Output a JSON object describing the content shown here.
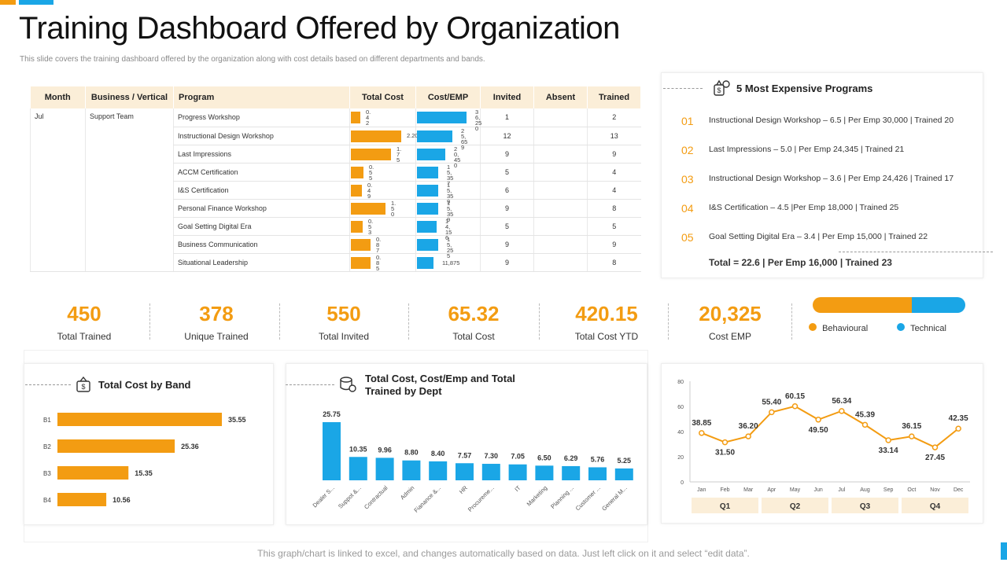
{
  "page": {
    "title": "Training Dashboard Offered by Organization",
    "subtitle": "This slide covers the training dashboard offered by the organization along with cost details based on different departments and bands.",
    "footer": "This graph/chart is linked to excel,  and changes automatically based on data. Just left click on it and select “edit data”."
  },
  "table": {
    "headers": [
      "Month",
      "Business / Vertical",
      "Program",
      "Total Cost",
      "Cost/EMP",
      "Invited",
      "Absent",
      "Trained"
    ],
    "month": "Jul",
    "vertical": "Support Team",
    "rows": [
      {
        "program": "Progress Workshop",
        "cost": 0.42,
        "cost_label": "0. 4 2",
        "emp": 36250,
        "emp_label": "36, 25 0",
        "invited": "1",
        "absent": "",
        "trained": "2"
      },
      {
        "program": "Instructional Design Workshop",
        "cost": 2.2,
        "cost_label": "2.20",
        "emp": 25659,
        "emp_label": "25, 65 9",
        "invited": "12",
        "absent": "",
        "trained": "13"
      },
      {
        "program": "Last Impressions",
        "cost": 1.75,
        "cost_label": "1. 7 5",
        "emp": 20450,
        "emp_label": "20, 45 0",
        "invited": "9",
        "absent": "",
        "trained": "9"
      },
      {
        "program": "ACCM Certification",
        "cost": 0.55,
        "cost_label": "0. 5 5",
        "emp": 15357,
        "emp_label": "15, 35 7",
        "invited": "5",
        "absent": "",
        "trained": "4"
      },
      {
        "program": "I&S Certification",
        "cost": 0.49,
        "cost_label": "0. 4 9",
        "emp": 15359,
        "emp_label": "15, 35 9",
        "invited": "6",
        "absent": "",
        "trained": "4"
      },
      {
        "program": "Personal Finance Workshop",
        "cost": 1.5,
        "cost_label": "1. 5 0",
        "emp": 15359,
        "emp_label": "15, 35 9",
        "invited": "9",
        "absent": "",
        "trained": "8"
      },
      {
        "program": "Goal Setting Digital Era",
        "cost": 0.53,
        "cost_label": "0. 5 3",
        "emp": 14156,
        "emp_label": "14, 15 6",
        "invited": "5",
        "absent": "",
        "trained": "5"
      },
      {
        "program": "Business Communication",
        "cost": 0.87,
        "cost_label": "0. 8 7",
        "emp": 15255,
        "emp_label": "15, 25 5",
        "invited": "9",
        "absent": "",
        "trained": "9"
      },
      {
        "program": "Situational Leadership",
        "cost": 0.85,
        "cost_label": "0. 8 5",
        "emp": 11875,
        "emp_label": "11,875",
        "invited": "9",
        "absent": "",
        "trained": "8"
      }
    ]
  },
  "expensive": {
    "title": "5 Most Expensive Programs",
    "items": [
      {
        "num": "01",
        "text": "Instructional Design Workshop – 6.5 | Per Emp  30,000 | Trained 20"
      },
      {
        "num": "02",
        "text": "Last Impressions – 5.0 | Per Emp  24,345 | Trained 21"
      },
      {
        "num": "03",
        "text": "Instructional Design Workshop – 3.6 | Per Emp  24,426 | Trained 17"
      },
      {
        "num": "04",
        "text": "I&S Certification – 4.5 |Per Emp  18,000 | Trained 25"
      },
      {
        "num": "05",
        "text": "Goal Setting Digital Era – 3.4 | Per Emp  15,000 | Trained 22"
      }
    ],
    "total": "Total = 22.6 | Per Emp 16,000 | Trained 23"
  },
  "kpis": [
    {
      "value": "450",
      "label": "Total Trained"
    },
    {
      "value": "378",
      "label": "Unique Trained"
    },
    {
      "value": "550",
      "label": "Total Invited"
    },
    {
      "value": "65.32",
      "label": "Total Cost"
    },
    {
      "value": "420.15",
      "label": "Total Cost YTD"
    },
    {
      "value": "20,325",
      "label": "Cost EMP"
    }
  ],
  "legend": {
    "behavioural": "Behavioural",
    "technical": "Technical",
    "behavioural_share": 0.65
  },
  "colors": {
    "orange": "#f39c12",
    "blue": "#1aa6e6"
  },
  "chart_data": [
    {
      "type": "bar",
      "orientation": "horizontal",
      "title": "Total Cost  by Band",
      "categories": [
        "B1",
        "B2",
        "B3",
        "B4"
      ],
      "values": [
        35.55,
        25.36,
        15.35,
        10.56
      ],
      "value_labels": [
        "35.55",
        "25.36",
        "15.35",
        "10.56"
      ],
      "xlim": [
        0,
        50
      ]
    },
    {
      "type": "bar",
      "title": "Total Cost, Cost/Emp  and Total Trained by Dept",
      "categories": [
        "Dealer S...",
        "Suppot  &...",
        "Contractual",
        "Admin",
        "Fianance &...",
        "HR",
        "Procureme...",
        "IT",
        "Marketing",
        "Planning ...",
        "Customer ...",
        "General M..."
      ],
      "values": [
        25.75,
        10.35,
        9.96,
        8.8,
        8.4,
        7.57,
        7.3,
        7.05,
        6.5,
        6.29,
        5.76,
        5.25
      ],
      "value_labels": [
        "25.75",
        "10.35",
        "9.96",
        "8.80",
        "8.40",
        "7.57",
        "7.30",
        "7.05",
        "6.50",
        "6.29",
        "5.76",
        "5.25"
      ],
      "ylim": [
        0,
        28
      ]
    },
    {
      "type": "line",
      "title": "",
      "x": [
        "Jan",
        "Feb",
        "Mar",
        "Apr",
        "May",
        "Jun",
        "Jul",
        "Aug",
        "Sep",
        "Oct",
        "Nov",
        "Dec"
      ],
      "values": [
        38.85,
        31.5,
        36.2,
        55.4,
        60.15,
        49.5,
        56.34,
        45.39,
        33.14,
        36.15,
        27.45,
        42.35
      ],
      "value_labels": [
        "38.85",
        "31.50",
        "36.20",
        "55.40",
        "60.15",
        "49.50",
        "56.34",
        "45.39",
        "33.14",
        "36.15",
        "27.45",
        "42.35"
      ],
      "ylim": [
        0,
        80
      ],
      "yticks": [
        "0",
        "20",
        "40",
        "60",
        "80"
      ],
      "quarters": [
        "Q1",
        "Q2",
        "Q3",
        "Q4"
      ]
    }
  ]
}
